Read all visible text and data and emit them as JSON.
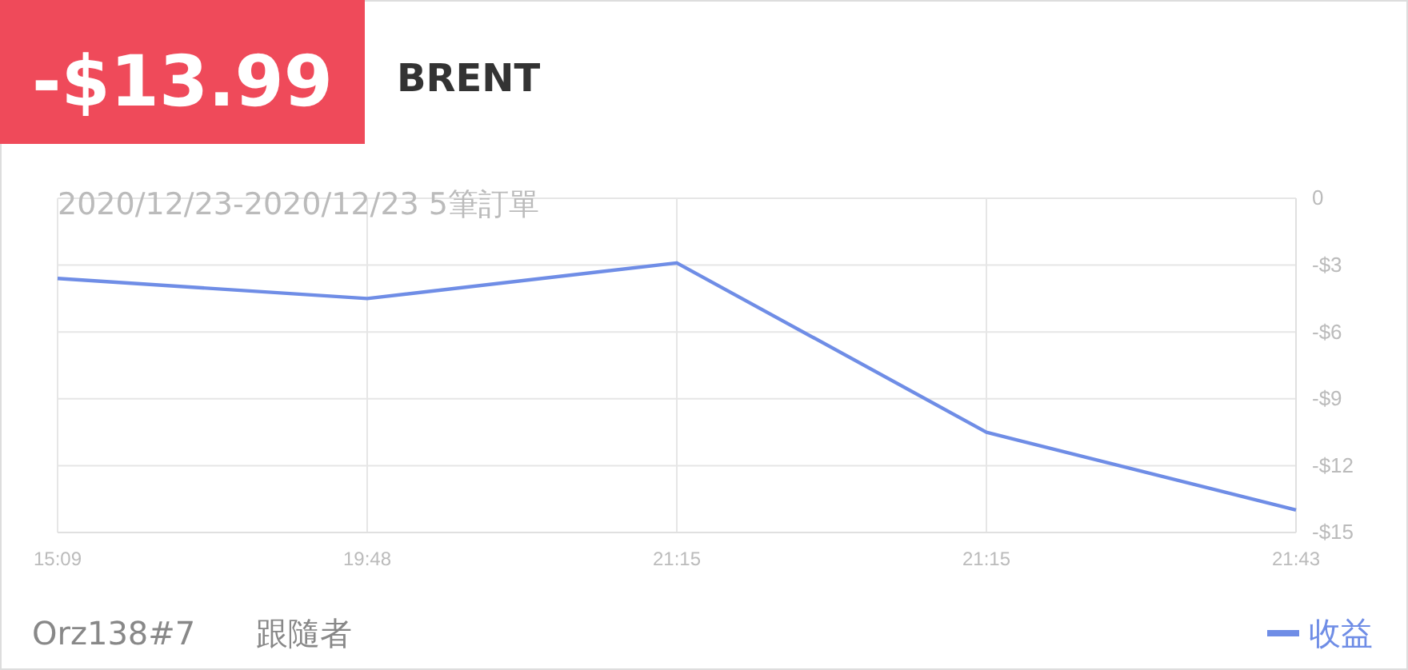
{
  "chart_data": {
    "type": "line",
    "title": "-$13.99",
    "subtitle": "BRENT",
    "annotations": [
      "2020/12/23-2020/12/23 5筆訂單",
      "Orz138#7",
      "跟隨者"
    ],
    "categories": [
      "15:09",
      "19:48",
      "21:15",
      "21:15",
      "21:43"
    ],
    "series": [
      {
        "name": "收益",
        "color": "#6f8de6",
        "values": [
          -3.6,
          -4.5,
          -2.9,
          -10.5,
          -13.99
        ]
      }
    ],
    "ylim": [
      -15,
      0
    ],
    "yticks": [
      {
        "value": -15,
        "label": "-$15"
      },
      {
        "value": -12,
        "label": "-$12"
      },
      {
        "value": -9,
        "label": "-$9"
      },
      {
        "value": -6,
        "label": "-$6"
      },
      {
        "value": -3,
        "label": "-$3"
      },
      0
    ],
    "grid": true,
    "legend": "bottom right",
    "marker": "none",
    "line_style": "solid"
  }
}
